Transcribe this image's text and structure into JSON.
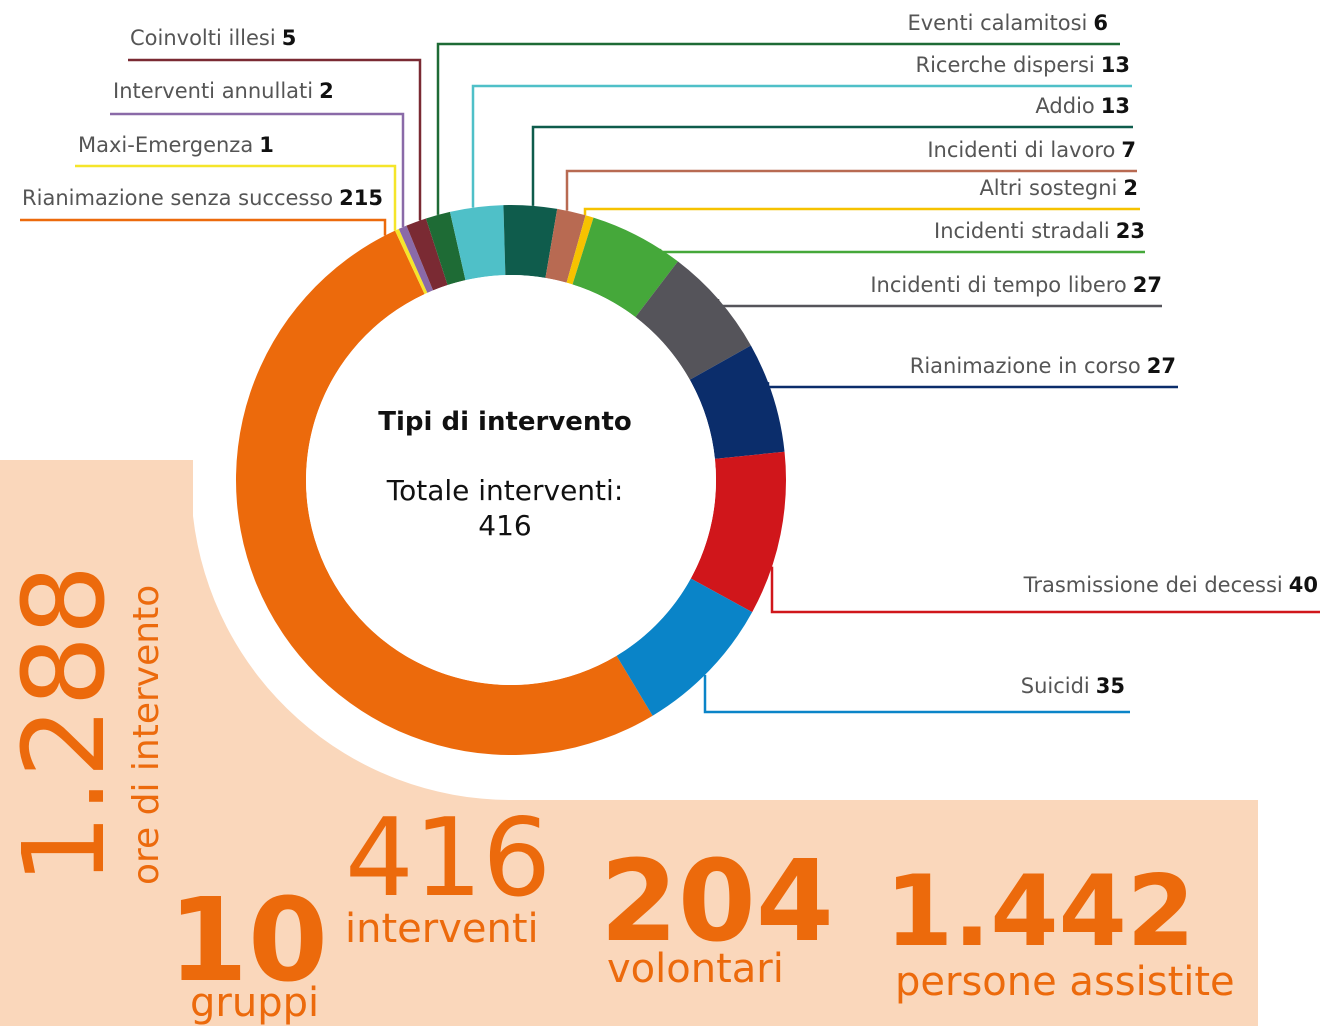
{
  "chart_data": {
    "type": "donut",
    "title": "Tipi di intervento",
    "total_label": "Totale interventi:",
    "total": 416,
    "categories": [
      "Rianimazione senza successo",
      "Maxi-Emergenza",
      "Interventi annullati",
      "Coinvolti illesi",
      "Eventi calamitosi",
      "Ricerche dispersi",
      "Addio",
      "Incidenti di lavoro",
      "Altri sostegni",
      "Incidenti stradali",
      "Incidenti di tempo libero",
      "Rianimazione in corso",
      "Trasmissione dei decessi",
      "Suicidi"
    ],
    "values": [
      215,
      1,
      2,
      5,
      6,
      13,
      13,
      7,
      2,
      23,
      27,
      27,
      40,
      35
    ],
    "colors": [
      "#ec6a0c",
      "#f5e52a",
      "#8a6aa8",
      "#7a2a33",
      "#1e6b35",
      "#4fc0c8",
      "#0f5c4c",
      "#b86a52",
      "#f6c200",
      "#45a83a",
      "#55545a",
      "#0b2d6b",
      "#d0161b",
      "#0a84c8"
    ]
  },
  "stats": [
    {
      "value": "1.288",
      "label": "ore di intervento"
    },
    {
      "value": "10",
      "label": "gruppi"
    },
    {
      "value": "416",
      "label": "interventi"
    },
    {
      "value": "204",
      "label": "volontari"
    },
    {
      "value": "1.442",
      "label": "persone assistite"
    }
  ]
}
